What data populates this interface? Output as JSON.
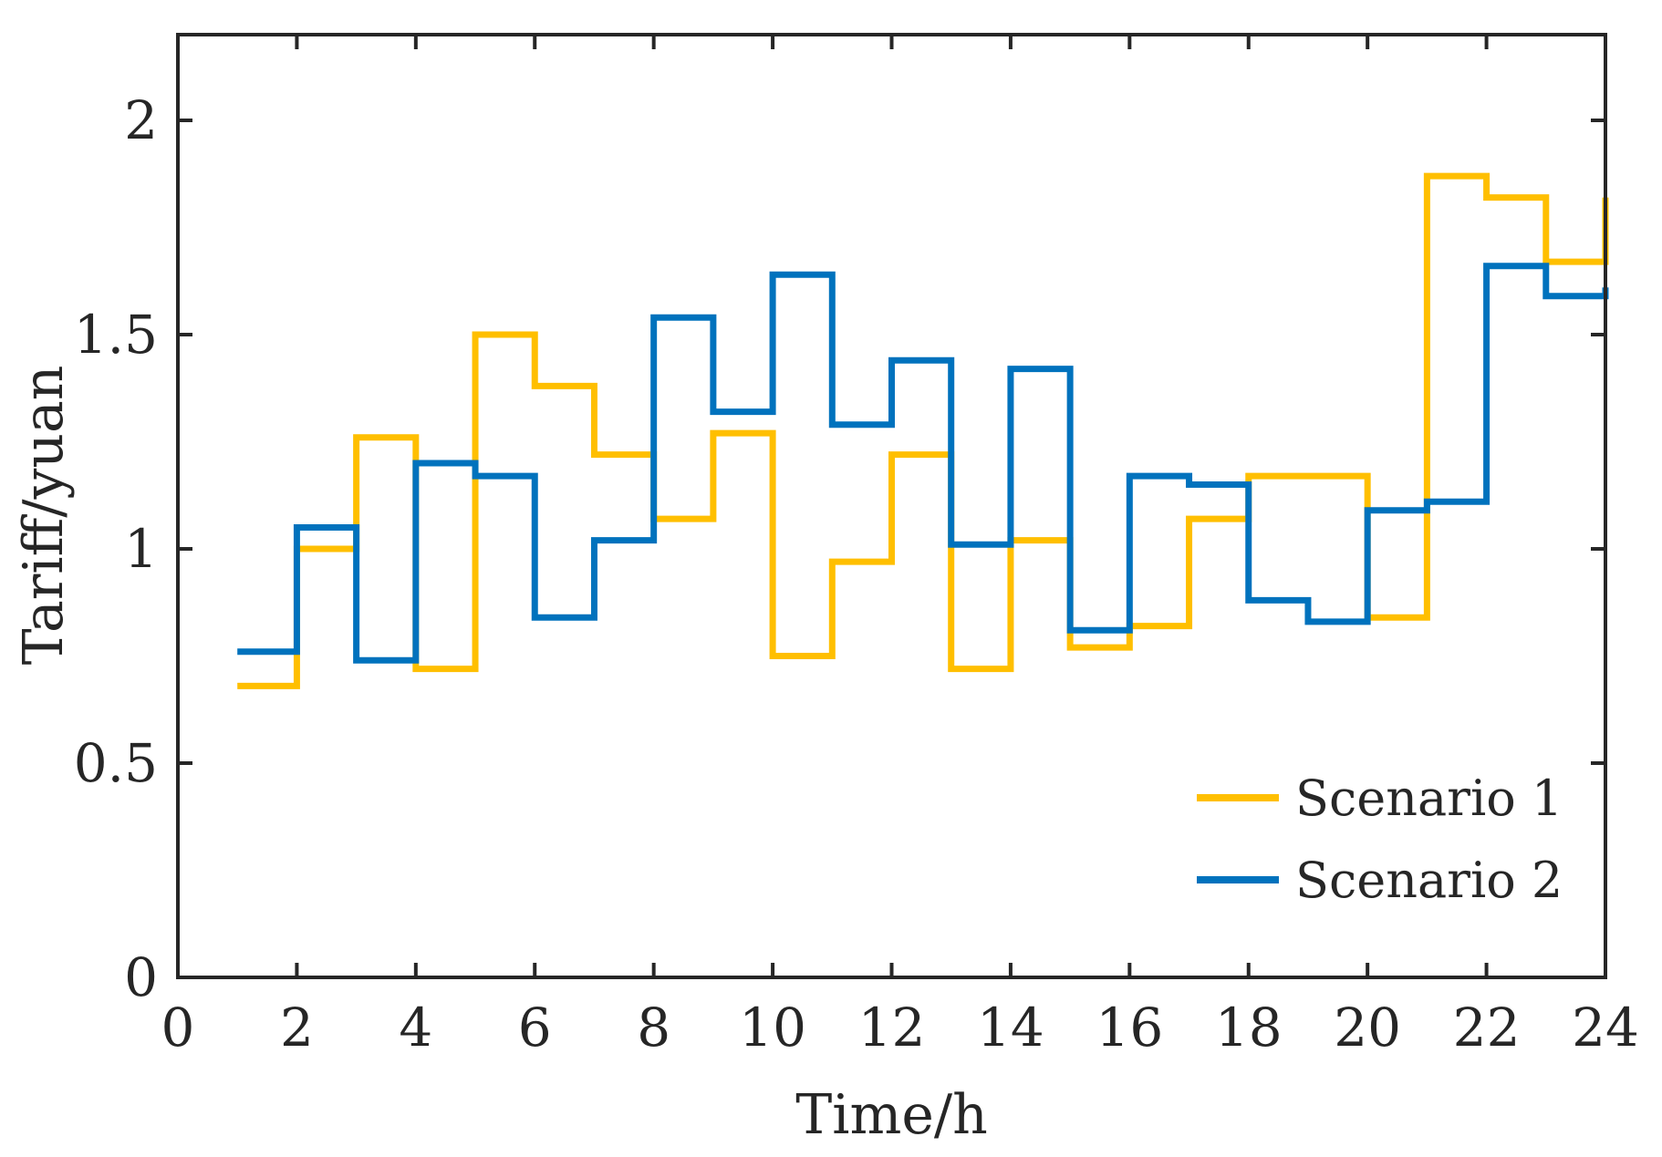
{
  "chart_data": {
    "type": "line",
    "step": "post",
    "title": "",
    "xlabel": "Time/h",
    "ylabel": "Tariff/yuan",
    "xlim": [
      0,
      24
    ],
    "ylim": [
      0,
      2.2
    ],
    "xticks": [
      0,
      2,
      4,
      6,
      8,
      10,
      12,
      14,
      16,
      18,
      20,
      22,
      24
    ],
    "yticks": [
      0,
      0.5,
      1,
      1.5,
      2
    ],
    "xtick_labels": [
      "0",
      "2",
      "4",
      "6",
      "8",
      "10",
      "12",
      "14",
      "16",
      "18",
      "20",
      "22",
      "24"
    ],
    "ytick_labels": [
      "0",
      "0.5",
      "1",
      "1.5",
      "2"
    ],
    "grid": false,
    "legend_position": "bottom-right",
    "x": [
      1,
      2,
      3,
      4,
      5,
      6,
      7,
      8,
      9,
      10,
      11,
      12,
      13,
      14,
      15,
      16,
      17,
      18,
      19,
      20,
      21,
      22,
      23,
      24
    ],
    "series": [
      {
        "name": "Scenario 1",
        "color": "#FFBF00",
        "values": [
          0.68,
          1.0,
          1.26,
          0.72,
          1.5,
          1.38,
          1.22,
          1.07,
          1.27,
          0.75,
          0.97,
          1.22,
          0.72,
          1.02,
          0.77,
          0.82,
          1.07,
          1.17,
          1.17,
          0.84,
          1.87,
          1.82,
          1.67,
          1.82
        ]
      },
      {
        "name": "Scenario 2",
        "color": "#0072BD",
        "values": [
          0.76,
          1.05,
          0.74,
          1.2,
          1.17,
          0.84,
          1.02,
          1.54,
          1.32,
          1.64,
          1.29,
          1.44,
          1.01,
          1.42,
          0.81,
          1.17,
          1.15,
          0.88,
          0.83,
          1.09,
          1.11,
          1.66,
          1.59,
          1.61
        ]
      }
    ]
  }
}
